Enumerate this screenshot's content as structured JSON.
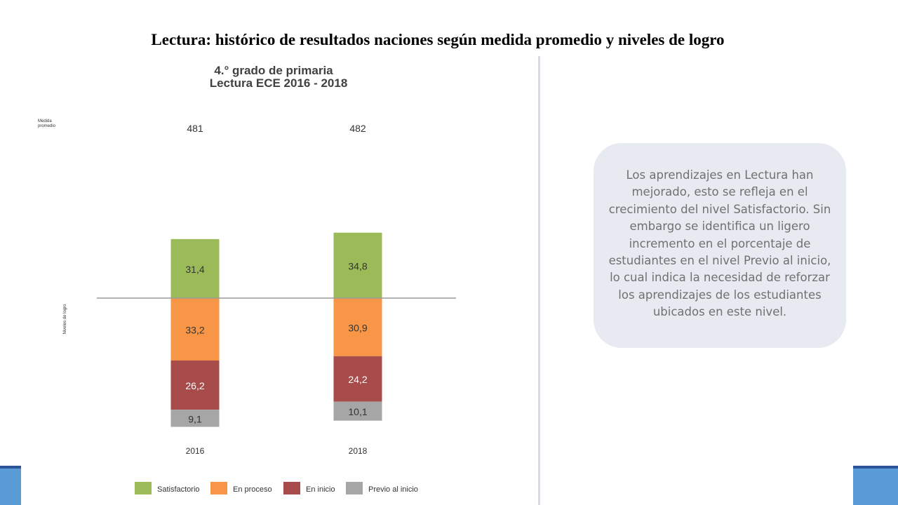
{
  "slide": {
    "title": "Lectura: histórico de resultados naciones según medida promedio y niveles de logro",
    "note": "Los aprendizajes en Lectura han mejorado, esto se refleja en el crecimiento del nivel Satisfactorio. Sin embargo se identifica un ligero incremento en el porcentaje de estudiantes en el nivel Previo al inicio, lo cual indica la necesidad  de reforzar los aprendizajes de los estudiantes ubicados en este nivel."
  },
  "chart_data": {
    "type": "bar",
    "stacked": "diverging",
    "title": "4.° grado de primaria",
    "subtitle": "Lectura ECE 2016 - 2018",
    "row_label_mean": "Medida promedio",
    "row_label_levels": "Niveles de logro",
    "categories": [
      "2016",
      "2018"
    ],
    "mean_scores": [
      "481",
      "482"
    ],
    "series": [
      {
        "name": "Satisfactorio",
        "color": "#9bbb59",
        "direction": "up",
        "values": [
          31.4,
          34.8
        ],
        "labels": [
          "31,4",
          "34,8"
        ],
        "label_color": "#333333"
      },
      {
        "name": "En proceso",
        "color": "#f79646",
        "direction": "down",
        "values": [
          33.2,
          30.9
        ],
        "labels": [
          "33,2",
          "30,9"
        ],
        "label_color": "#333333"
      },
      {
        "name": "En inicio",
        "color": "#a84b4b",
        "direction": "down",
        "values": [
          26.2,
          24.2
        ],
        "labels": [
          "26,2",
          "24,2"
        ],
        "label_color": "#ffffff"
      },
      {
        "name": "Previo al inicio",
        "color": "#a6a6a6",
        "direction": "down",
        "values": [
          9.1,
          10.1
        ],
        "labels": [
          "9,1",
          "10,1"
        ],
        "label_color": "#333333"
      }
    ],
    "legend_position": "bottom"
  }
}
